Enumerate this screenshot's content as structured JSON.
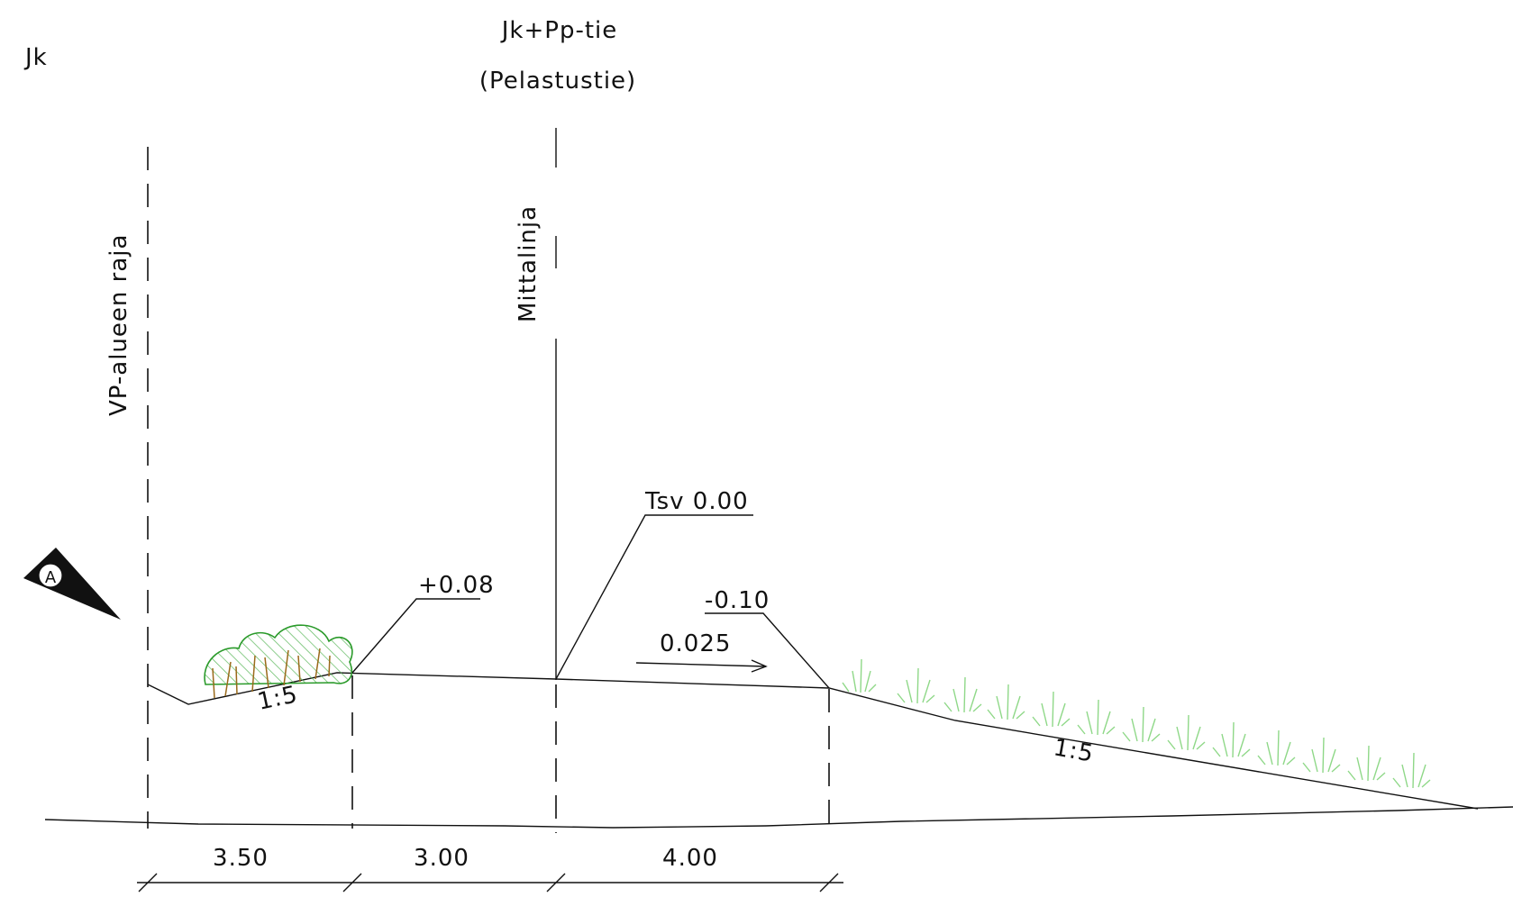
{
  "titles": {
    "corner_label": "Jk",
    "road_type": "Jk+Pp-tie",
    "road_subtitle": "(Pelastustie)"
  },
  "vertical_labels": {
    "boundary": "VP-alueen raja",
    "measure_line": "Mittalinja"
  },
  "elevations": {
    "left_edge": "+0.08",
    "centerline": "Tsv 0.00",
    "right_edge": "-0.10"
  },
  "slopes": {
    "cross_fall": "0.025",
    "left_ditch": "1:5",
    "right_embankment": "1:5"
  },
  "dimensions": [
    "3.50",
    "3.00",
    "4.00"
  ],
  "section_marker": {
    "label": "A",
    "icon": "section-marker-icon"
  },
  "colors": {
    "line": "#111111",
    "vegetation": "#2a9a2a",
    "vegetation_hatch": "#5cb85c",
    "shrub_stems": "#9a6a1a",
    "grass": "#8fd888"
  }
}
